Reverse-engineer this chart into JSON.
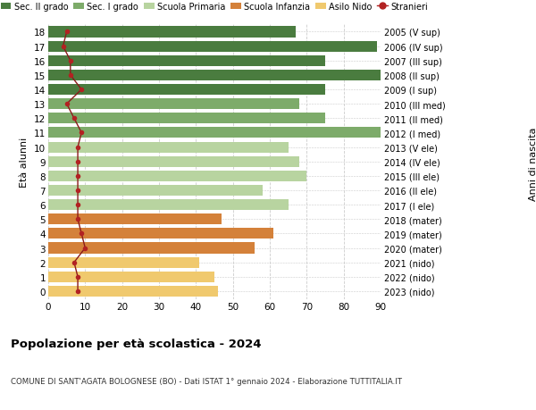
{
  "ages": [
    18,
    17,
    16,
    15,
    14,
    13,
    12,
    11,
    10,
    9,
    8,
    7,
    6,
    5,
    4,
    3,
    2,
    1,
    0
  ],
  "years": [
    "2005 (V sup)",
    "2006 (IV sup)",
    "2007 (III sup)",
    "2008 (II sup)",
    "2009 (I sup)",
    "2010 (III med)",
    "2011 (II med)",
    "2012 (I med)",
    "2013 (V ele)",
    "2014 (IV ele)",
    "2015 (III ele)",
    "2016 (II ele)",
    "2017 (I ele)",
    "2018 (mater)",
    "2019 (mater)",
    "2020 (mater)",
    "2021 (nido)",
    "2022 (nido)",
    "2023 (nido)"
  ],
  "bar_values": [
    67,
    89,
    75,
    91,
    75,
    68,
    75,
    91,
    65,
    68,
    70,
    58,
    65,
    47,
    61,
    56,
    41,
    45,
    46
  ],
  "bar_colors": [
    "#4a7c3f",
    "#4a7c3f",
    "#4a7c3f",
    "#4a7c3f",
    "#4a7c3f",
    "#7dab6a",
    "#7dab6a",
    "#7dab6a",
    "#b8d4a0",
    "#b8d4a0",
    "#b8d4a0",
    "#b8d4a0",
    "#b8d4a0",
    "#d4813a",
    "#d4813a",
    "#d4813a",
    "#f0c96e",
    "#f0c96e",
    "#f0c96e"
  ],
  "stranieri_values": [
    5,
    4,
    6,
    6,
    9,
    5,
    7,
    9,
    8,
    8,
    8,
    8,
    8,
    8,
    9,
    10,
    7,
    8,
    8
  ],
  "legend_labels": [
    "Sec. II grado",
    "Sec. I grado",
    "Scuola Primaria",
    "Scuola Infanzia",
    "Asilo Nido",
    "Stranieri"
  ],
  "legend_colors": [
    "#4a7c3f",
    "#7dab6a",
    "#b8d4a0",
    "#d4813a",
    "#f0c96e",
    "#b22222"
  ],
  "title": "Popolazione per età scolastica - 2024",
  "subtitle": "COMUNE DI SANT'AGATA BOLOGNESE (BO) - Dati ISTAT 1° gennaio 2024 - Elaborazione TUTTITALIA.IT",
  "ylabel_left": "Età alunni",
  "ylabel_right": "Anni di nascita",
  "xlim": [
    0,
    90
  ],
  "xticks": [
    0,
    10,
    20,
    30,
    40,
    50,
    60,
    70,
    80,
    90
  ],
  "bg_color": "#ffffff"
}
